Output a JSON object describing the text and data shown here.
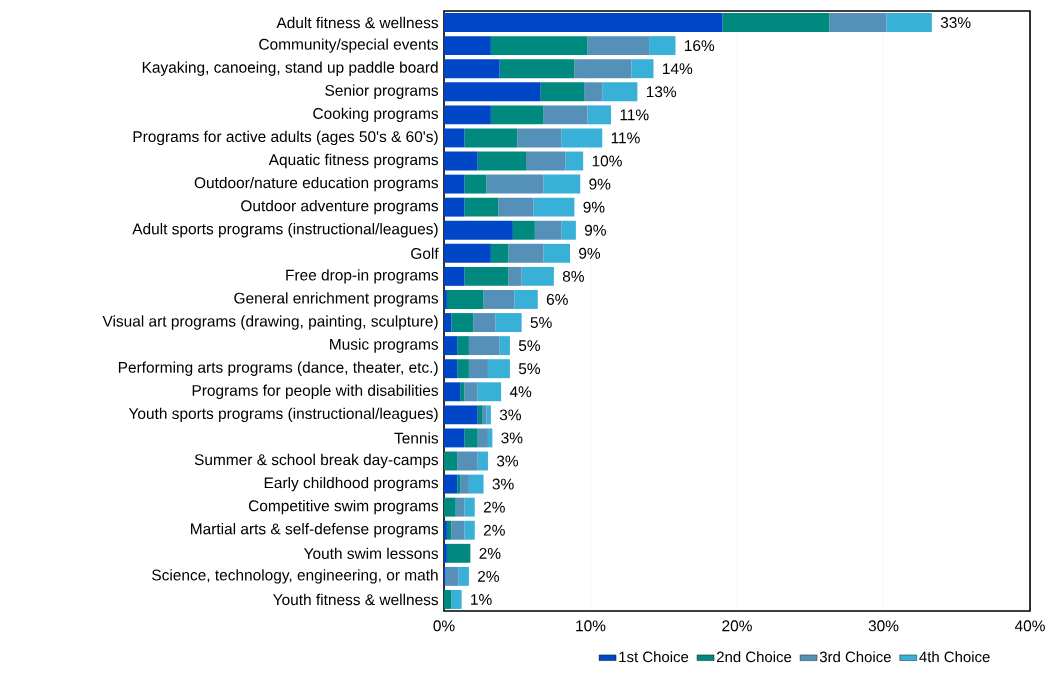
{
  "chart_data": {
    "type": "bar",
    "orientation": "horizontal",
    "stacked": true,
    "categories": [
      "Adult fitness & wellness",
      "Community/special events",
      "Kayaking, canoeing, stand up paddle board",
      "Senior programs",
      "Cooking programs",
      "Programs for active adults (ages 50's & 60's)",
      "Aquatic fitness programs",
      "Outdoor/nature education programs",
      "Outdoor adventure programs",
      "Adult sports programs (instructional/leagues)",
      "Golf",
      "Free drop-in programs",
      "General enrichment programs",
      "Visual art programs (drawing, painting, sculpture)",
      "Music programs",
      "Performing arts programs (dance, theater, etc.)",
      "Programs for people with disabilities",
      "Youth sports programs (instructional/leagues)",
      "Tennis",
      "Summer & school break day-camps",
      "Early childhood programs",
      "Competitive swim programs",
      "Martial arts & self-defense programs",
      "Youth swim lessons",
      "Science, technology, engineering, or math",
      "Youth fitness & wellness"
    ],
    "series": [
      {
        "name": "1st Choice",
        "color": "#0047c7",
        "values": [
          19.0,
          3.2,
          3.8,
          6.6,
          3.2,
          1.4,
          2.3,
          1.4,
          1.4,
          4.7,
          3.2,
          1.4,
          0.2,
          0.5,
          0.9,
          0.9,
          1.1,
          2.3,
          1.4,
          0,
          0.9,
          0,
          0.2,
          0.2,
          0.1,
          0
        ]
      },
      {
        "name": "2nd Choice",
        "color": "#00897f",
        "values": [
          7.3,
          6.6,
          5.1,
          3.0,
          3.6,
          3.6,
          3.3,
          1.5,
          2.3,
          1.5,
          1.2,
          3.0,
          2.5,
          1.5,
          0.8,
          0.8,
          0.3,
          0.3,
          0.9,
          0.9,
          0.2,
          0.8,
          0.3,
          1.6,
          0,
          0.5
        ]
      },
      {
        "name": "3rd Choice",
        "color": "#5590b8",
        "values": [
          3.9,
          4.2,
          3.9,
          1.2,
          3.0,
          3.0,
          2.7,
          3.9,
          2.4,
          1.8,
          2.4,
          0.9,
          2.1,
          1.5,
          2.1,
          1.3,
          0.9,
          0.3,
          0.7,
          1.4,
          0.6,
          0.6,
          0.9,
          0,
          0.9,
          0
        ]
      },
      {
        "name": "4th Choice",
        "color": "#38b0d8",
        "values": [
          3.1,
          1.8,
          1.5,
          2.4,
          1.6,
          2.8,
          1.2,
          2.5,
          2.8,
          1.0,
          1.8,
          2.2,
          1.6,
          1.8,
          0.7,
          1.5,
          1.6,
          0.3,
          0.3,
          0.7,
          1.0,
          0.7,
          0.7,
          0,
          0.7,
          0.7
        ]
      }
    ],
    "totals": [
      "33%",
      "16%",
      "14%",
      "13%",
      "11%",
      "11%",
      "10%",
      "9%",
      "9%",
      "9%",
      "9%",
      "8%",
      "6%",
      "5%",
      "5%",
      "5%",
      "4%",
      "3%",
      "3%",
      "3%",
      "3%",
      "2%",
      "2%",
      "2%",
      "2%",
      "1%"
    ],
    "xlim": [
      0,
      40
    ],
    "xticks": [
      {
        "value": 0,
        "label": "0%"
      },
      {
        "value": 10,
        "label": "10%"
      },
      {
        "value": 20,
        "label": "20%"
      },
      {
        "value": 30,
        "label": "30%"
      },
      {
        "value": 40,
        "label": "40%"
      }
    ],
    "grid": "x",
    "legend": "bottom"
  }
}
